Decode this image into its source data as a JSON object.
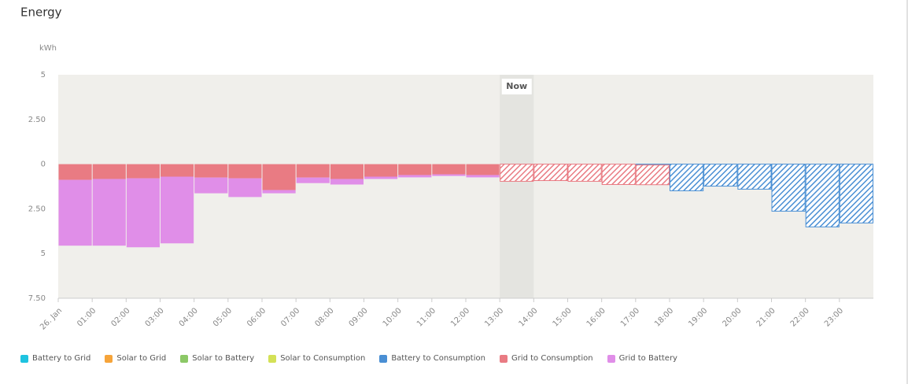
{
  "chart_data": {
    "type": "bar",
    "title": "Energy",
    "y_label": "kWh",
    "annotation": {
      "text": "Now",
      "category": "13:00"
    },
    "categories": [
      "26. Jan",
      "01:00",
      "02:00",
      "03:00",
      "04:00",
      "05:00",
      "06:00",
      "07:00",
      "08:00",
      "09:00",
      "10:00",
      "11:00",
      "12:00",
      "13:00",
      "14:00",
      "15:00",
      "16:00",
      "17:00",
      "18:00",
      "19:00",
      "20:00",
      "21:00",
      "22:00",
      "23:00"
    ],
    "ylim": [
      -7.5,
      5
    ],
    "yticks": [
      {
        "value": -7.5,
        "label": "7.50"
      },
      {
        "value": -5,
        "label": "5"
      },
      {
        "value": -2.5,
        "label": "2.50"
      },
      0,
      {
        "value": 2.5,
        "label": "2.50"
      },
      5
    ],
    "series": [
      {
        "name": "Battery to Grid",
        "color": "#1ec3e0",
        "values": [
          0,
          0,
          0,
          0,
          0,
          0,
          0,
          0,
          0,
          0,
          0,
          0,
          0,
          0,
          0,
          0,
          0,
          0,
          0,
          0,
          0,
          0,
          0,
          0
        ]
      },
      {
        "name": "Solar to Grid",
        "color": "#f6a43a",
        "values": [
          0,
          0,
          0,
          0,
          0,
          0,
          0,
          0,
          0,
          0,
          0,
          0,
          0,
          0,
          0,
          0,
          0,
          0,
          0,
          0,
          0,
          0,
          0,
          0
        ]
      },
      {
        "name": "Solar to Battery",
        "color": "#8cc867",
        "values": [
          0,
          0,
          0,
          0,
          0,
          0,
          0,
          0,
          0,
          0,
          0,
          0,
          0,
          0,
          0,
          0,
          0,
          0,
          0,
          0,
          0,
          0,
          0,
          0
        ]
      },
      {
        "name": "Solar to Consumption",
        "color": "#d4e157",
        "values": [
          0,
          0,
          0,
          0,
          0,
          0,
          0,
          0,
          0,
          0,
          0,
          0,
          0,
          0,
          0,
          0,
          0,
          0,
          0,
          0,
          0,
          0,
          0,
          0
        ]
      },
      {
        "name": "Battery to Consumption",
        "color": "#4a8fd4",
        "values": [
          0,
          0,
          0,
          0,
          0,
          0,
          0,
          0,
          0,
          0,
          0,
          0,
          0,
          0,
          0,
          0,
          0,
          -0.05,
          -1.49,
          -1.23,
          -1.4,
          -2.63,
          -3.51,
          -3.29
        ]
      },
      {
        "name": "Grid to Consumption",
        "color": "#e97b83",
        "values": [
          -0.88,
          -0.83,
          -0.79,
          -0.7,
          -0.75,
          -0.79,
          -1.45,
          -0.75,
          -0.83,
          -0.7,
          -0.61,
          -0.57,
          -0.61,
          -0.96,
          -0.92,
          -0.96,
          -1.14,
          -1.1,
          0,
          0,
          0,
          0,
          0,
          0
        ]
      },
      {
        "name": "Grid to Battery",
        "color": "#e08ee8",
        "values": [
          -3.68,
          -3.73,
          -3.86,
          -3.73,
          -0.88,
          -1.05,
          -0.18,
          -0.31,
          -0.31,
          -0.13,
          -0.13,
          -0.09,
          -0.13,
          0,
          0,
          0,
          0,
          0,
          0,
          0,
          0,
          0,
          0,
          0
        ]
      }
    ]
  }
}
